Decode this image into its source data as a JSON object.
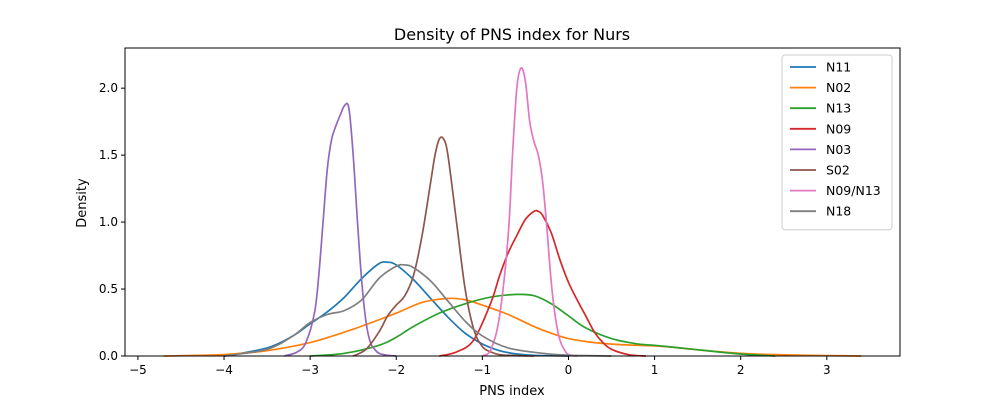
{
  "chart_data": {
    "type": "line",
    "title": "Density of PNS index for Nurs",
    "xlabel": "PNS index",
    "ylabel": "Density",
    "xlim": [
      -5.15,
      3.85
    ],
    "ylim": [
      0,
      2.3
    ],
    "xticks": [
      -5,
      -4,
      -3,
      -2,
      -1,
      0,
      1,
      2,
      3
    ],
    "yticks": [
      0.0,
      0.5,
      1.0,
      1.5,
      2.0
    ],
    "xtick_labels": [
      "−5",
      "−4",
      "−3",
      "−2",
      "−1",
      "0",
      "1",
      "2",
      "3"
    ],
    "ytick_labels": [
      "0.0",
      "0.5",
      "1.0",
      "1.5",
      "2.0"
    ],
    "legend_position": "top-right",
    "series": [
      {
        "name": "N11",
        "color": "#1f77b4",
        "x": [
          -4.0,
          -3.5,
          -3.2,
          -3.0,
          -2.8,
          -2.6,
          -2.4,
          -2.2,
          -2.1,
          -2.0,
          -1.8,
          -1.6,
          -1.4,
          -1.2,
          -1.0,
          -0.8,
          -0.6,
          -0.4,
          0.0
        ],
        "y": [
          0.0,
          0.06,
          0.15,
          0.24,
          0.33,
          0.44,
          0.58,
          0.69,
          0.7,
          0.68,
          0.57,
          0.43,
          0.29,
          0.17,
          0.09,
          0.04,
          0.015,
          0.005,
          0.0
        ]
      },
      {
        "name": "N02",
        "color": "#ff7f0e",
        "x": [
          -4.7,
          -4.0,
          -3.5,
          -3.0,
          -2.5,
          -2.0,
          -1.7,
          -1.4,
          -1.2,
          -1.0,
          -0.7,
          -0.4,
          -0.2,
          0.0,
          0.3,
          0.6,
          1.0,
          1.3,
          1.6,
          2.0,
          2.4,
          3.0,
          3.4
        ],
        "y": [
          0.0,
          0.01,
          0.04,
          0.1,
          0.2,
          0.32,
          0.4,
          0.43,
          0.42,
          0.38,
          0.31,
          0.22,
          0.17,
          0.13,
          0.1,
          0.085,
          0.075,
          0.06,
          0.04,
          0.02,
          0.01,
          0.003,
          0.0
        ]
      },
      {
        "name": "N13",
        "color": "#2ca02c",
        "x": [
          -3.0,
          -2.6,
          -2.2,
          -2.0,
          -1.8,
          -1.5,
          -1.2,
          -0.9,
          -0.6,
          -0.4,
          -0.2,
          0.0,
          0.2,
          0.5,
          0.8,
          1.0,
          1.3,
          1.6,
          2.0,
          2.4
        ],
        "y": [
          0.0,
          0.02,
          0.08,
          0.14,
          0.22,
          0.32,
          0.39,
          0.44,
          0.46,
          0.45,
          0.39,
          0.3,
          0.21,
          0.13,
          0.09,
          0.08,
          0.06,
          0.04,
          0.015,
          0.0
        ]
      },
      {
        "name": "N09",
        "color": "#d62728",
        "x": [
          -1.5,
          -1.3,
          -1.1,
          -0.9,
          -0.8,
          -0.7,
          -0.6,
          -0.5,
          -0.4,
          -0.35,
          -0.3,
          -0.2,
          -0.1,
          0.0,
          0.1,
          0.2,
          0.3,
          0.4,
          0.5,
          0.7,
          0.9
        ],
        "y": [
          0.0,
          0.03,
          0.12,
          0.4,
          0.6,
          0.77,
          0.9,
          1.02,
          1.08,
          1.08,
          1.05,
          0.92,
          0.72,
          0.55,
          0.42,
          0.3,
          0.18,
          0.1,
          0.05,
          0.01,
          0.0
        ]
      },
      {
        "name": "N03",
        "color": "#9467bd",
        "x": [
          -3.3,
          -3.15,
          -3.05,
          -2.95,
          -2.9,
          -2.85,
          -2.8,
          -2.75,
          -2.7,
          -2.65,
          -2.6,
          -2.55,
          -2.5,
          -2.45,
          -2.4,
          -2.35,
          -2.3,
          -2.25,
          -2.2,
          -2.1,
          -2.0
        ],
        "y": [
          0.0,
          0.03,
          0.1,
          0.32,
          0.6,
          1.0,
          1.4,
          1.62,
          1.72,
          1.8,
          1.87,
          1.85,
          1.5,
          1.0,
          0.55,
          0.25,
          0.1,
          0.05,
          0.02,
          0.005,
          0.0
        ]
      },
      {
        "name": "S02",
        "color": "#8c564b",
        "x": [
          -2.5,
          -2.35,
          -2.2,
          -2.1,
          -2.0,
          -1.9,
          -1.8,
          -1.7,
          -1.6,
          -1.55,
          -1.5,
          -1.45,
          -1.4,
          -1.3,
          -1.2,
          -1.1,
          -1.0,
          -0.9,
          -0.8,
          -0.6,
          -0.4
        ],
        "y": [
          0.0,
          0.05,
          0.18,
          0.3,
          0.38,
          0.45,
          0.6,
          0.9,
          1.3,
          1.5,
          1.62,
          1.62,
          1.5,
          1.0,
          0.5,
          0.2,
          0.07,
          0.03,
          0.01,
          0.003,
          0.0
        ]
      },
      {
        "name": "N09/N13",
        "color": "#e377c2",
        "x": [
          -1.0,
          -0.9,
          -0.8,
          -0.7,
          -0.65,
          -0.6,
          -0.55,
          -0.5,
          -0.45,
          -0.4,
          -0.35,
          -0.3,
          -0.25,
          -0.2,
          -0.15,
          -0.1,
          -0.05,
          0.0,
          0.1
        ],
        "y": [
          0.0,
          0.05,
          0.3,
          0.9,
          1.5,
          2.0,
          2.15,
          2.05,
          1.75,
          1.6,
          1.5,
          1.3,
          0.95,
          0.55,
          0.28,
          0.12,
          0.05,
          0.01,
          0.0
        ]
      },
      {
        "name": "N18",
        "color": "#7f7f7f",
        "x": [
          -4.0,
          -3.5,
          -3.2,
          -3.0,
          -2.8,
          -2.6,
          -2.4,
          -2.2,
          -2.0,
          -1.9,
          -1.8,
          -1.6,
          -1.4,
          -1.2,
          -1.0,
          -0.7,
          -0.3,
          0.0,
          0.3,
          0.5
        ],
        "y": [
          0.0,
          0.05,
          0.15,
          0.25,
          0.31,
          0.34,
          0.42,
          0.58,
          0.67,
          0.68,
          0.66,
          0.56,
          0.41,
          0.26,
          0.15,
          0.06,
          0.02,
          0.006,
          0.002,
          0.0
        ]
      }
    ]
  }
}
